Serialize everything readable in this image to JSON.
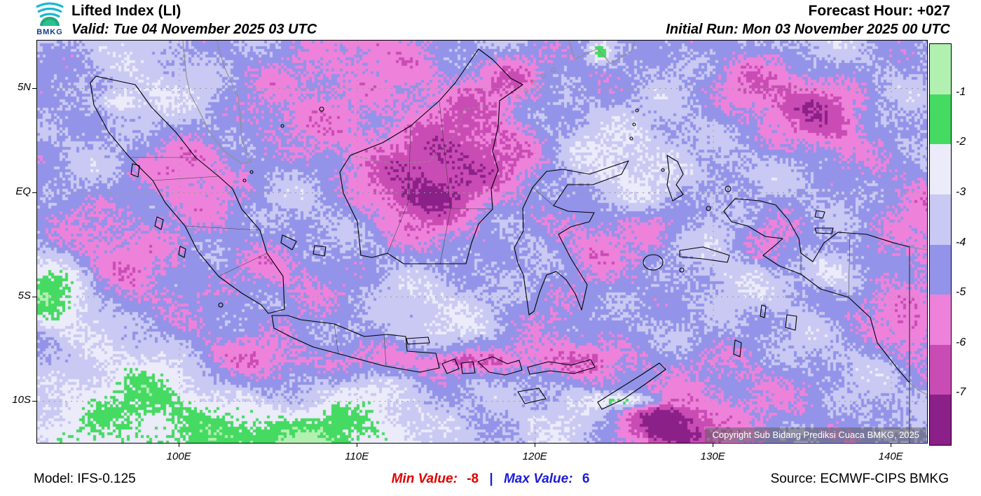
{
  "header": {
    "logo_text": "BMKG",
    "title": "Lifted Index (LI)",
    "valid": "Valid: Tue 04 November 2025 03 UTC",
    "forecast_hour": "Forecast Hour: +027",
    "initial_run": "Initial Run: Mon 03 November 2025 00 UTC"
  },
  "map": {
    "lat_labels": [
      "5N",
      "EQ",
      "5S",
      "10S"
    ],
    "lon_labels": [
      "100E",
      "110E",
      "120E",
      "130E",
      "140E"
    ],
    "copyright": "Copyright Sub Bidang Prediksi Cuaca BMKG, 2025"
  },
  "colorbar": {
    "tick_labels": [
      "-1",
      "-2",
      "-3",
      "-4",
      "-5",
      "-6",
      "-7"
    ],
    "colors": [
      "#b2f0b2",
      "#45da61",
      "#ebebfa",
      "#c9c9f3",
      "#9393e9",
      "#ee82da",
      "#c94cb4",
      "#8b2089"
    ]
  },
  "footer": {
    "model": "Model: IFS-0.125",
    "min_label": "Min Value:",
    "min_value": "-8",
    "divider": "|",
    "max_label": "Max Value:",
    "max_value": "6",
    "source": "Source: ECMWF-CIPS BMKG",
    "min_color": "#e00000",
    "max_color": "#1d1dd6"
  }
}
